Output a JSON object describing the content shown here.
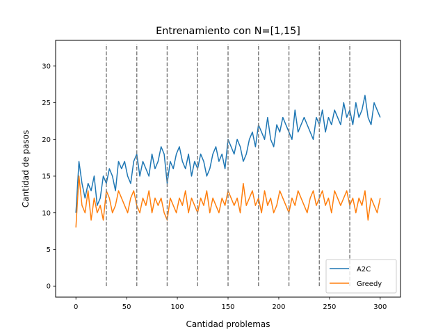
{
  "chart_data": {
    "type": "line",
    "title": "Entrenamiento con N=[1,15]",
    "xlabel": "Cantidad problemas",
    "ylabel": "Cantidad de pasos",
    "xlim": [
      -20,
      320
    ],
    "ylim": [
      -1.5,
      33.5
    ],
    "xticks": [
      0,
      50,
      100,
      150,
      200,
      250,
      300
    ],
    "yticks": [
      0,
      5,
      10,
      15,
      20,
      25,
      30
    ],
    "grid": false,
    "legend_position": "lower-right",
    "vlines": {
      "x": [
        30,
        60,
        90,
        120,
        150,
        180,
        210,
        240,
        270
      ],
      "ymin": 0,
      "ymax": 33,
      "color": "#808080",
      "style": "dashed"
    },
    "series": [
      {
        "name": "A2C",
        "color": "#1f77b4",
        "sample_step": 3,
        "y": [
          10,
          17,
          14,
          12,
          14,
          13,
          15,
          11,
          12,
          15,
          14,
          16,
          15,
          13,
          17,
          16,
          17,
          15,
          14,
          17,
          18,
          15,
          17,
          16,
          15,
          18,
          16,
          17,
          19,
          18,
          14,
          17,
          16,
          18,
          19,
          17,
          16,
          18,
          15,
          17,
          16,
          18,
          17,
          15,
          16,
          18,
          19,
          17,
          18,
          16,
          20,
          19,
          18,
          20,
          19,
          17,
          18,
          20,
          21,
          19,
          22,
          21,
          20,
          23,
          20,
          19,
          22,
          21,
          23,
          22,
          21,
          20,
          24,
          21,
          22,
          23,
          22,
          21,
          20,
          23,
          22,
          24,
          21,
          23,
          22,
          24,
          23,
          22,
          25,
          23,
          24,
          22,
          25,
          23,
          24,
          26,
          23,
          22,
          25,
          24,
          23
        ]
      },
      {
        "name": "Greedy",
        "color": "#ff7f0e",
        "sample_step": 3,
        "y": [
          8,
          15,
          11,
          10,
          13,
          9,
          12,
          10,
          11,
          9,
          13,
          12,
          10,
          11,
          13,
          12,
          11,
          10,
          12,
          13,
          11,
          10,
          12,
          11,
          13,
          10,
          12,
          11,
          12,
          10,
          9,
          12,
          11,
          10,
          12,
          11,
          13,
          10,
          12,
          11,
          10,
          12,
          11,
          13,
          10,
          12,
          11,
          10,
          12,
          11,
          13,
          12,
          11,
          12,
          10,
          14,
          11,
          12,
          13,
          11,
          12,
          10,
          13,
          11,
          12,
          10,
          11,
          13,
          12,
          11,
          10,
          12,
          11,
          13,
          12,
          11,
          10,
          12,
          13,
          11,
          12,
          13,
          11,
          12,
          10,
          13,
          12,
          11,
          12,
          13,
          11,
          12,
          10,
          12,
          11,
          13,
          9,
          12,
          11,
          10,
          12
        ]
      }
    ]
  }
}
